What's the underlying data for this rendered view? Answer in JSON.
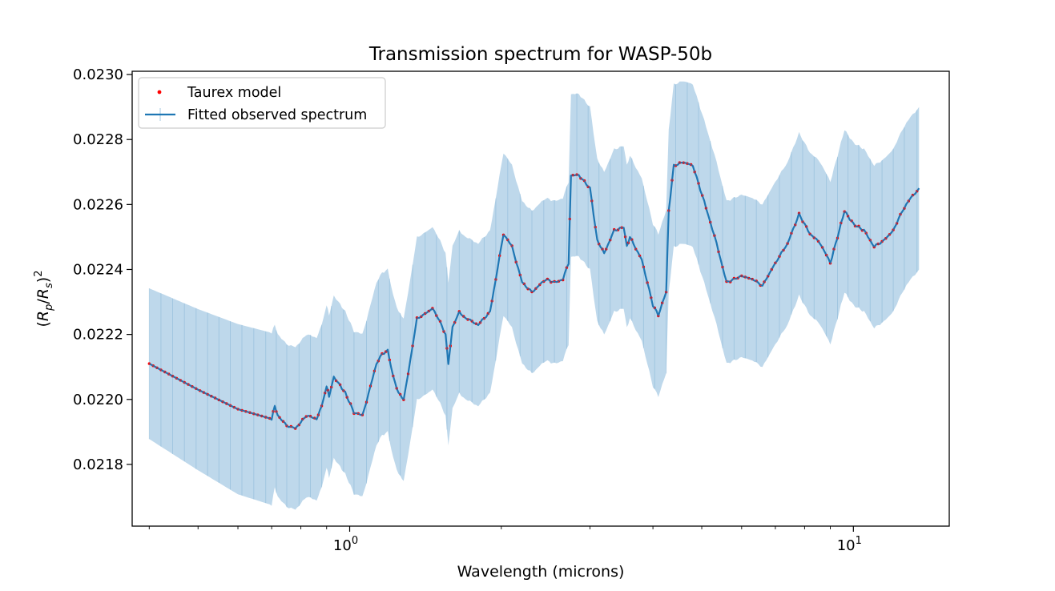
{
  "chart_data": {
    "type": "scatter",
    "title": "Transmission spectrum for WASP-50b",
    "xlabel": "Wavelength (microns)",
    "ylabel": "(Rp/Rs)2",
    "x_scale": "log",
    "xlim": [
      0.37,
      15.5
    ],
    "ylim": [
      0.02161,
      0.02301
    ],
    "x_ticks": [
      {
        "value": 1,
        "label": "10",
        "exp": "0"
      },
      {
        "value": 10,
        "label": "10",
        "exp": "1"
      }
    ],
    "y_ticks": [
      {
        "value": 0.0218,
        "label": "0.0218"
      },
      {
        "value": 0.022,
        "label": "0.0220"
      },
      {
        "value": 0.0222,
        "label": "0.0222"
      },
      {
        "value": 0.0224,
        "label": "0.0224"
      },
      {
        "value": 0.0226,
        "label": "0.0226"
      },
      {
        "value": 0.0228,
        "label": "0.0228"
      },
      {
        "value": 0.023,
        "label": "0.0230"
      }
    ],
    "grid": false,
    "legend_position": "top-left",
    "colors": {
      "model": "#ff0000",
      "model_edge": "#d62728",
      "spectrum": "#1f77b4",
      "error_band": "#b3d1e8"
    },
    "series": [
      {
        "name": "Taurex model",
        "kind": "scatter"
      },
      {
        "name": "Fitted observed spectrum",
        "kind": "line-with-errorbars"
      }
    ],
    "spectrum": [
      [
        0.4,
        0.02211,
        0.000232
      ],
      [
        0.5,
        0.02203,
        0.000248
      ],
      [
        0.6,
        0.02197,
        0.000262
      ],
      [
        0.7,
        0.02194,
        0.000265
      ],
      [
        0.71,
        0.02198,
        0.00025
      ],
      [
        0.72,
        0.02195,
        0.00025
      ],
      [
        0.75,
        0.02192,
        0.00025
      ],
      [
        0.78,
        0.02191,
        0.00025
      ],
      [
        0.8,
        0.02193,
        0.00025
      ],
      [
        0.82,
        0.02195,
        0.00025
      ],
      [
        0.86,
        0.02194,
        0.00025
      ],
      [
        0.88,
        0.02198,
        0.00025
      ],
      [
        0.9,
        0.02204,
        0.00025
      ],
      [
        0.91,
        0.02201,
        0.00025
      ],
      [
        0.93,
        0.02207,
        0.00025
      ],
      [
        0.95,
        0.02205,
        0.00025
      ],
      [
        0.98,
        0.02202,
        0.00025
      ],
      [
        1.02,
        0.02196,
        0.00025
      ],
      [
        1.06,
        0.02195,
        0.00025
      ],
      [
        1.1,
        0.02204,
        0.00025
      ],
      [
        1.13,
        0.02211,
        0.00025
      ],
      [
        1.16,
        0.02214,
        0.00025
      ],
      [
        1.19,
        0.02215,
        0.00025
      ],
      [
        1.22,
        0.02207,
        0.00025
      ],
      [
        1.25,
        0.02202,
        0.00025
      ],
      [
        1.28,
        0.022,
        0.00025
      ],
      [
        1.32,
        0.02212,
        0.00025
      ],
      [
        1.36,
        0.02225,
        0.00025
      ],
      [
        1.4,
        0.02226,
        0.00025
      ],
      [
        1.46,
        0.02228,
        0.00025
      ],
      [
        1.5,
        0.02225,
        0.00025
      ],
      [
        1.55,
        0.0222,
        0.00025
      ],
      [
        1.57,
        0.02211,
        0.00025
      ],
      [
        1.6,
        0.02222,
        0.00025
      ],
      [
        1.65,
        0.02227,
        0.00025
      ],
      [
        1.7,
        0.02225,
        0.00025
      ],
      [
        1.8,
        0.02223,
        0.00025
      ],
      [
        1.9,
        0.02227,
        0.00025
      ],
      [
        1.95,
        0.02237,
        0.00025
      ],
      [
        2.02,
        0.02251,
        0.00025
      ],
      [
        2.1,
        0.02247,
        0.00025
      ],
      [
        2.2,
        0.02236,
        0.00025
      ],
      [
        2.3,
        0.02233,
        0.00025
      ],
      [
        2.45,
        0.02237,
        0.00025
      ],
      [
        2.55,
        0.02236,
        0.00025
      ],
      [
        2.65,
        0.02237,
        0.00025
      ],
      [
        2.72,
        0.02242,
        0.00025
      ],
      [
        2.75,
        0.02269,
        0.00025
      ],
      [
        2.85,
        0.02269,
        0.00025
      ],
      [
        3.0,
        0.02265,
        0.00025
      ],
      [
        3.1,
        0.02249,
        0.00025
      ],
      [
        3.2,
        0.02245,
        0.00025
      ],
      [
        3.35,
        0.02252,
        0.00025
      ],
      [
        3.5,
        0.02253,
        0.00025
      ],
      [
        3.55,
        0.02247,
        0.00025
      ],
      [
        3.6,
        0.0225,
        0.00025
      ],
      [
        3.8,
        0.02243,
        0.00025
      ],
      [
        4.0,
        0.02229,
        0.00025
      ],
      [
        4.1,
        0.02226,
        0.00025
      ],
      [
        4.25,
        0.02233,
        0.00025
      ],
      [
        4.3,
        0.02258,
        0.00025
      ],
      [
        4.4,
        0.02272,
        0.00025
      ],
      [
        4.6,
        0.02273,
        0.00025
      ],
      [
        4.8,
        0.02272,
        0.00025
      ],
      [
        5.1,
        0.02259,
        0.00025
      ],
      [
        5.35,
        0.02248,
        0.00025
      ],
      [
        5.6,
        0.02236,
        0.00025
      ],
      [
        6.0,
        0.02238,
        0.00025
      ],
      [
        6.3,
        0.02237,
        0.00025
      ],
      [
        6.6,
        0.02235,
        0.00025
      ],
      [
        7.0,
        0.02242,
        0.00025
      ],
      [
        7.4,
        0.02248,
        0.00025
      ],
      [
        7.8,
        0.02257,
        0.00025
      ],
      [
        8.2,
        0.02251,
        0.00025
      ],
      [
        8.6,
        0.02248,
        0.00025
      ],
      [
        9.0,
        0.02242,
        0.00025
      ],
      [
        9.3,
        0.0225,
        0.00025
      ],
      [
        9.6,
        0.02258,
        0.00025
      ],
      [
        10.0,
        0.02254,
        0.00025
      ],
      [
        10.5,
        0.02252,
        0.00025
      ],
      [
        11.0,
        0.02247,
        0.00025
      ],
      [
        11.5,
        0.02249,
        0.00025
      ],
      [
        12.0,
        0.02252,
        0.00025
      ],
      [
        12.5,
        0.02258,
        0.00025
      ],
      [
        13.0,
        0.02262,
        0.00025
      ],
      [
        13.5,
        0.02265,
        0.00025
      ]
    ]
  }
}
